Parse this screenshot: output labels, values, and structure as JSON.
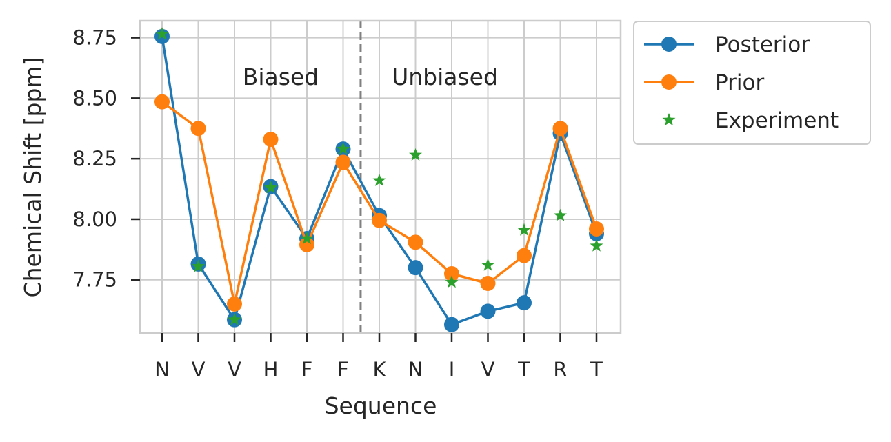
{
  "chart_data": {
    "type": "line",
    "xlabel": "Sequence",
    "ylabel": "Chemical Shift [ppm]",
    "categories": [
      "N",
      "V",
      "V",
      "H",
      "F",
      "F",
      "K",
      "N",
      "I",
      "V",
      "T",
      "R",
      "T"
    ],
    "ylim": [
      7.53,
      8.82
    ],
    "yticks": [
      7.75,
      8.0,
      8.25,
      8.5,
      8.75
    ],
    "ytick_labels": [
      "7.75",
      "8.00",
      "8.25",
      "8.50",
      "8.75"
    ],
    "grid": true,
    "series": [
      {
        "name": "Posterior",
        "color": "#1f77b4",
        "marker": "circle",
        "line": true,
        "values": [
          8.755,
          7.815,
          7.585,
          8.135,
          7.92,
          8.29,
          8.015,
          7.8,
          7.565,
          7.62,
          7.655,
          8.355,
          7.94
        ]
      },
      {
        "name": "Prior",
        "color": "#ff7f0e",
        "marker": "circle",
        "line": true,
        "values": [
          8.485,
          8.375,
          7.65,
          8.33,
          7.895,
          8.235,
          7.995,
          7.905,
          7.775,
          7.735,
          7.85,
          8.375,
          7.96
        ]
      },
      {
        "name": "Experiment",
        "color": "#2ca02c",
        "marker": "star",
        "line": false,
        "values": [
          8.765,
          7.805,
          7.585,
          8.13,
          7.92,
          8.29,
          8.16,
          8.265,
          7.74,
          7.81,
          7.955,
          8.015,
          7.89
        ]
      }
    ],
    "divider": {
      "between": [
        5,
        6
      ],
      "style": "dashed",
      "color": "#808080"
    },
    "annotations": [
      {
        "text": "Biased",
        "region": "left"
      },
      {
        "text": "Unbiased",
        "region": "right"
      }
    ],
    "legend": {
      "placement": "outside-top-right"
    }
  }
}
